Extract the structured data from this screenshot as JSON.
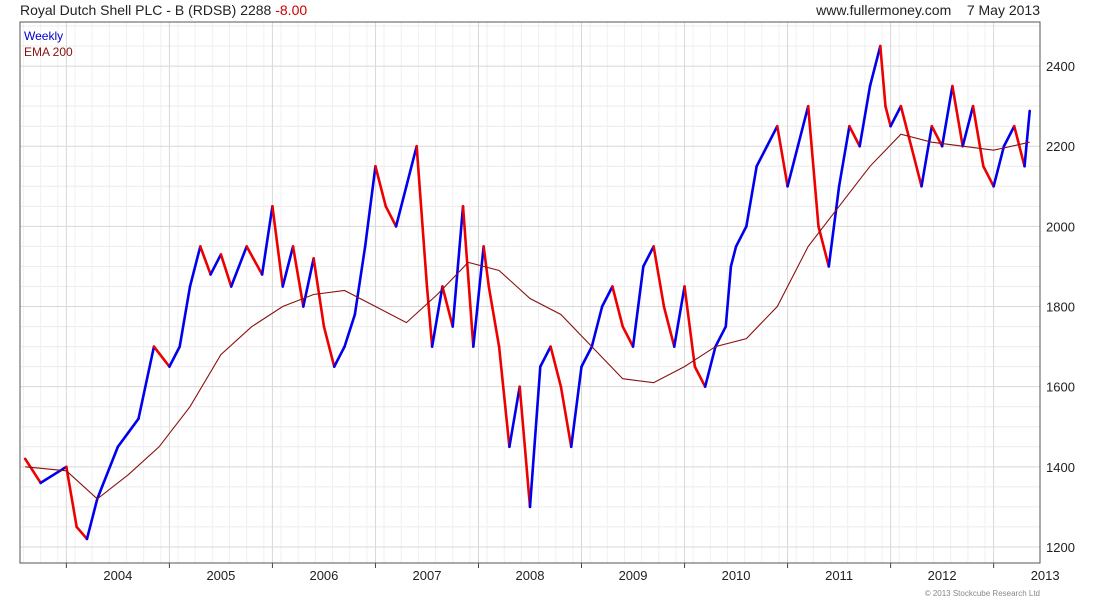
{
  "header": {
    "title": "Royal Dutch Shell PLC - B (RDSB)",
    "last": "2288",
    "change": "-8.00",
    "site": "www.fullermoney.com",
    "date": "7 May 2013"
  },
  "footer": {
    "copyright": "© 2013 Stockcube Research Ltd"
  },
  "chart_data": {
    "type": "line",
    "x_ticks": [
      "2004",
      "2005",
      "2006",
      "2007",
      "2008",
      "2009",
      "2010",
      "2011",
      "2012",
      "2013"
    ],
    "y_ticks": [
      1200,
      1400,
      1600,
      1800,
      2000,
      2200,
      2400
    ],
    "ylim": [
      1160,
      2510
    ],
    "xlim": [
      2003.55,
      2013.45
    ],
    "grid": true,
    "legend_position": "top-left",
    "colors": {
      "up": "#0000ee",
      "down": "#ee0000",
      "ema": "#8b1010",
      "grid": "#d8d8d8"
    },
    "series": [
      {
        "name": "Weekly",
        "x": [
          2003.6,
          2003.75,
          2004.0,
          2004.1,
          2004.2,
          2004.3,
          2004.5,
          2004.7,
          2004.85,
          2005.0,
          2005.1,
          2005.2,
          2005.3,
          2005.4,
          2005.5,
          2005.6,
          2005.75,
          2005.9,
          2006.0,
          2006.1,
          2006.2,
          2006.3,
          2006.4,
          2006.5,
          2006.6,
          2006.7,
          2006.8,
          2006.9,
          2007.0,
          2007.1,
          2007.2,
          2007.3,
          2007.4,
          2007.5,
          2007.55,
          2007.65,
          2007.75,
          2007.85,
          2007.95,
          2008.05,
          2008.1,
          2008.2,
          2008.3,
          2008.4,
          2008.5,
          2008.6,
          2008.7,
          2008.8,
          2008.9,
          2009.0,
          2009.1,
          2009.2,
          2009.3,
          2009.4,
          2009.5,
          2009.6,
          2009.7,
          2009.8,
          2009.9,
          2010.0,
          2010.1,
          2010.2,
          2010.3,
          2010.4,
          2010.45,
          2010.5,
          2010.6,
          2010.7,
          2010.8,
          2010.9,
          2011.0,
          2011.1,
          2011.2,
          2011.3,
          2011.4,
          2011.5,
          2011.6,
          2011.7,
          2011.8,
          2011.9,
          2011.95,
          2012.0,
          2012.1,
          2012.2,
          2012.3,
          2012.4,
          2012.5,
          2012.6,
          2012.7,
          2012.8,
          2012.9,
          2013.0,
          2013.1,
          2013.2,
          2013.3,
          2013.35
        ],
        "y": [
          1420,
          1360,
          1400,
          1250,
          1220,
          1320,
          1450,
          1520,
          1700,
          1650,
          1700,
          1850,
          1950,
          1880,
          1930,
          1850,
          1950,
          1880,
          2050,
          1850,
          1950,
          1800,
          1920,
          1750,
          1650,
          1700,
          1780,
          1950,
          2150,
          2050,
          2000,
          2100,
          2200,
          1850,
          1700,
          1850,
          1750,
          2050,
          1700,
          1950,
          1850,
          1700,
          1450,
          1600,
          1300,
          1650,
          1700,
          1600,
          1450,
          1650,
          1700,
          1800,
          1850,
          1750,
          1700,
          1900,
          1950,
          1800,
          1700,
          1850,
          1650,
          1600,
          1700,
          1750,
          1900,
          1950,
          2000,
          2150,
          2200,
          2250,
          2100,
          2200,
          2300,
          2000,
          1900,
          2100,
          2250,
          2200,
          2350,
          2450,
          2300,
          2250,
          2300,
          2200,
          2100,
          2250,
          2200,
          2350,
          2200,
          2300,
          2150,
          2100,
          2200,
          2250,
          2150,
          2288
        ]
      },
      {
        "name": "EMA 200",
        "x": [
          2003.6,
          2004.0,
          2004.3,
          2004.6,
          2004.9,
          2005.2,
          2005.5,
          2005.8,
          2006.1,
          2006.4,
          2006.7,
          2007.0,
          2007.3,
          2007.6,
          2007.9,
          2008.2,
          2008.5,
          2008.8,
          2009.1,
          2009.4,
          2009.7,
          2010.0,
          2010.3,
          2010.6,
          2010.9,
          2011.2,
          2011.5,
          2011.8,
          2012.1,
          2012.4,
          2012.7,
          2013.0,
          2013.35
        ],
        "y": [
          1400,
          1390,
          1320,
          1380,
          1450,
          1550,
          1680,
          1750,
          1800,
          1830,
          1840,
          1800,
          1760,
          1830,
          1910,
          1890,
          1820,
          1780,
          1700,
          1620,
          1610,
          1650,
          1700,
          1720,
          1800,
          1950,
          2050,
          2150,
          2230,
          2210,
          2200,
          2190,
          2210
        ]
      }
    ]
  }
}
